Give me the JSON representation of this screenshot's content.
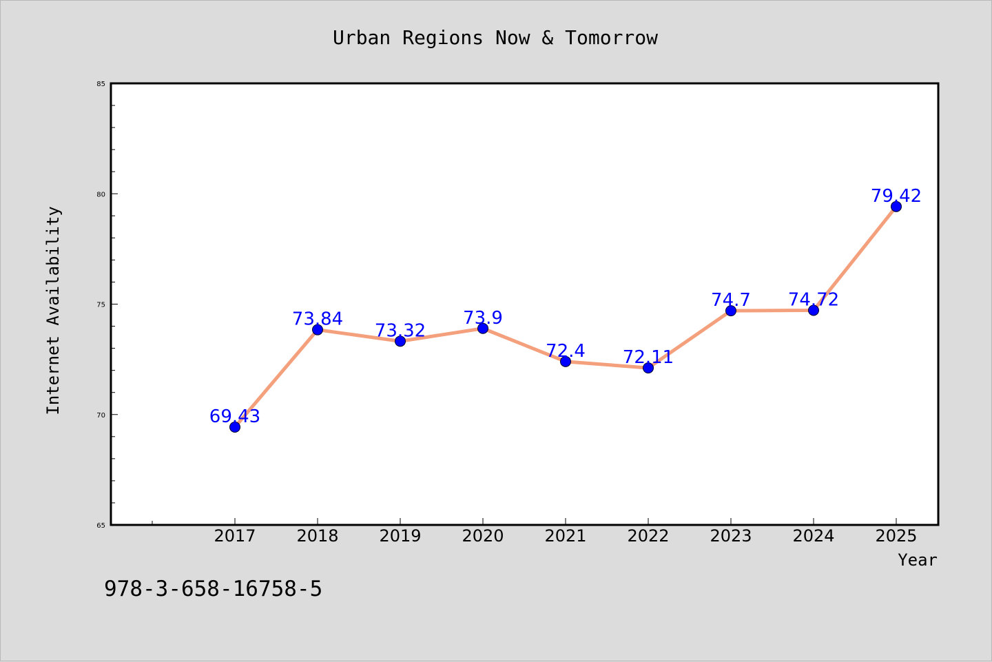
{
  "chart_data": {
    "type": "line",
    "title": "Urban Regions Now & Tomorrow",
    "xlabel": "Year",
    "ylabel": "Internet Availability",
    "categories": [
      "2017",
      "2018",
      "2019",
      "2020",
      "2021",
      "2022",
      "2023",
      "2024",
      "2025"
    ],
    "series": [
      {
        "values": [
          69.43,
          73.84,
          73.32,
          73.9,
          72.4,
          72.11,
          74.7,
          74.72,
          79.42
        ],
        "labels": [
          "69.43",
          "73.84",
          "73.32",
          "73.9",
          "72.4",
          "72.11",
          "74.7",
          "74.72",
          "79.42"
        ],
        "line_color": "#f4a07c",
        "marker_color": "#0000ff"
      }
    ],
    "ylim": [
      65,
      85
    ],
    "yticks": [
      "65",
      "70",
      "75",
      "80",
      "85"
    ],
    "grid": false,
    "legend": "none",
    "background": "#dcdcdc",
    "plot_background": "#ffffff",
    "label_color": "#0000ff"
  },
  "caption": "978-3-658-16758-5"
}
